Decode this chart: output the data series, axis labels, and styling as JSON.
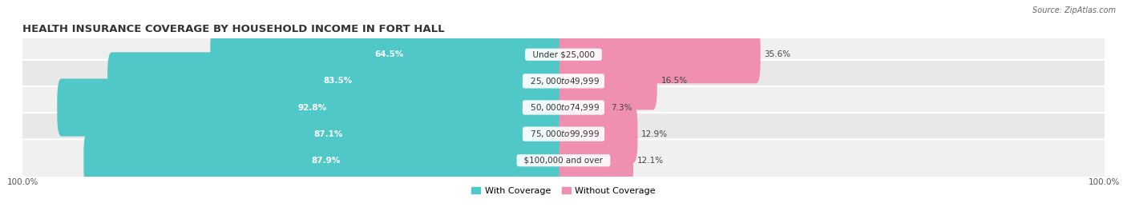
{
  "title": "HEALTH INSURANCE COVERAGE BY HOUSEHOLD INCOME IN FORT HALL",
  "source": "Source: ZipAtlas.com",
  "categories": [
    "Under $25,000",
    "$25,000 to $49,999",
    "$50,000 to $74,999",
    "$75,000 to $99,999",
    "$100,000 and over"
  ],
  "with_coverage": [
    64.5,
    83.5,
    92.8,
    87.1,
    87.9
  ],
  "without_coverage": [
    35.6,
    16.5,
    7.3,
    12.9,
    12.1
  ],
  "color_coverage": "#50C8C8",
  "color_without": "#F090B0",
  "row_bg_even": "#F0F0F0",
  "row_bg_odd": "#E8E8E8",
  "title_fontsize": 9.5,
  "label_fontsize": 7.5,
  "cat_fontsize": 7.5,
  "tick_fontsize": 7.5,
  "legend_fontsize": 8.0,
  "bar_height": 0.58,
  "figsize": [
    14.06,
    2.69
  ],
  "dpi": 100
}
